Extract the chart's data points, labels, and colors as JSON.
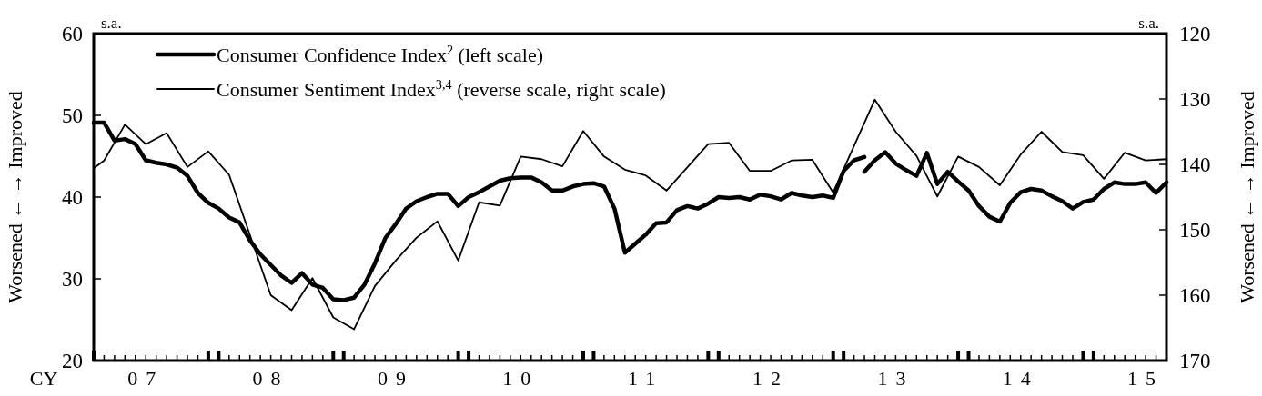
{
  "chart_data": {
    "type": "line",
    "ylabel": "Worsened ← → Improved",
    "y2label": "Worsened ← → Improved",
    "xlabel": "CY",
    "annotations": [
      "s.a.",
      "s.a."
    ],
    "legend": "top left",
    "xlim": [
      "2007-01",
      "2015-08"
    ],
    "xticks": [
      {
        "value": "2007-06",
        "label": "07"
      },
      {
        "value": "2008-06",
        "label": "08"
      },
      {
        "value": "2009-06",
        "label": "09"
      },
      {
        "value": "2010-06",
        "label": "10"
      },
      {
        "value": "2011-06",
        "label": "11"
      },
      {
        "value": "2012-06",
        "label": "12"
      },
      {
        "value": "2013-06",
        "label": "13"
      },
      {
        "value": "2014-06",
        "label": "14"
      },
      {
        "value": "2015-06",
        "label": "15"
      },
      {
        "value": "2007-01",
        "label": null
      },
      {
        "value": "2007-12",
        "label": null
      },
      {
        "value": "2008-01",
        "label": null
      },
      {
        "value": "2008-12",
        "label": null
      },
      {
        "value": "2009-01",
        "label": null
      },
      {
        "value": "2009-12",
        "label": null
      },
      {
        "value": "2010-01",
        "label": null
      },
      {
        "value": "2010-12",
        "label": null
      },
      {
        "value": "2011-01",
        "label": null
      },
      {
        "value": "2011-12",
        "label": null
      },
      {
        "value": "2012-01",
        "label": null
      },
      {
        "value": "2012-12",
        "label": null
      },
      {
        "value": "2013-01",
        "label": null
      },
      {
        "value": "2013-12",
        "label": null
      },
      {
        "value": "2014-01",
        "label": null
      },
      {
        "value": "2014-12",
        "label": null
      },
      {
        "value": "2015-01",
        "label": null
      }
    ],
    "ylim": [
      20,
      60
    ],
    "yticks": [
      20,
      30,
      40,
      50,
      60
    ],
    "y2lim": [
      170,
      120
    ],
    "y2ticks": [
      120,
      130,
      140,
      150,
      160,
      170
    ],
    "x": [
      "2007-01",
      "2007-02",
      "2007-03",
      "2007-04",
      "2007-05",
      "2007-06",
      "2007-07",
      "2007-08",
      "2007-09",
      "2007-10",
      "2007-11",
      "2007-12",
      "2008-01",
      "2008-02",
      "2008-03",
      "2008-04",
      "2008-05",
      "2008-06",
      "2008-07",
      "2008-08",
      "2008-09",
      "2008-10",
      "2008-11",
      "2008-12",
      "2009-01",
      "2009-02",
      "2009-03",
      "2009-04",
      "2009-05",
      "2009-06",
      "2009-07",
      "2009-08",
      "2009-09",
      "2009-10",
      "2009-11",
      "2009-12",
      "2010-01",
      "2010-02",
      "2010-03",
      "2010-04",
      "2010-05",
      "2010-06",
      "2010-07",
      "2010-08",
      "2010-09",
      "2010-10",
      "2010-11",
      "2010-12",
      "2011-01",
      "2011-02",
      "2011-03",
      "2011-04",
      "2011-05",
      "2011-06",
      "2011-07",
      "2011-08",
      "2011-09",
      "2011-10",
      "2011-11",
      "2011-12",
      "2012-01",
      "2012-02",
      "2012-03",
      "2012-04",
      "2012-05",
      "2012-06",
      "2012-07",
      "2012-08",
      "2012-09",
      "2012-10",
      "2012-11",
      "2012-12",
      "2013-01",
      "2013-02",
      "2013-03",
      "2013-04",
      "2013-05",
      "2013-06",
      "2013-07",
      "2013-08",
      "2013-09",
      "2013-10",
      "2013-11",
      "2013-12",
      "2014-01",
      "2014-02",
      "2014-03",
      "2014-04",
      "2014-05",
      "2014-06",
      "2014-07",
      "2014-08",
      "2014-09",
      "2014-10",
      "2014-11",
      "2014-12",
      "2015-01",
      "2015-02",
      "2015-03",
      "2015-04",
      "2015-05",
      "2015-06",
      "2015-07",
      "2015-08"
    ],
    "series": [
      {
        "name": "Consumer Confidence Index$^{2}$ (left scale)",
        "color": "#000000",
        "values": [
          49.1,
          49.1,
          46.9,
          47.1,
          46.5,
          44.5,
          44.2,
          44.0,
          43.6,
          42.6,
          40.5,
          39.3,
          38.6,
          37.5,
          36.9,
          34.7,
          33.0,
          31.7,
          30.4,
          29.5,
          30.7,
          29.3,
          28.9,
          27.5,
          27.4,
          27.7,
          29.3,
          31.9,
          35.0,
          36.7,
          38.6,
          39.5,
          40.0,
          40.4,
          40.4,
          38.9,
          40.0,
          40.6,
          41.3,
          42.0,
          42.3,
          42.4,
          42.4,
          41.8,
          40.8,
          40.8,
          41.3,
          41.6,
          41.7,
          41.3,
          38.6,
          33.2,
          34.3,
          35.4,
          36.8,
          36.9,
          38.4,
          38.9,
          38.6,
          39.2,
          40.0,
          39.9,
          40.0,
          39.7,
          40.3,
          40.1,
          39.7,
          40.5,
          40.2,
          40.0,
          40.2,
          39.9,
          43.2,
          44.5,
          44.9,
          null,
          null,
          null,
          null,
          null,
          null,
          null,
          null,
          null,
          null,
          null,
          null,
          null,
          null,
          null,
          null,
          null,
          null,
          null,
          null,
          null,
          null,
          null,
          null,
          null,
          null,
          null,
          null,
          null
        ]
      },
      {
        "color": "#000000",
        "values": [
          null,
          null,
          null,
          null,
          null,
          null,
          null,
          null,
          null,
          null,
          null,
          null,
          null,
          null,
          null,
          null,
          null,
          null,
          null,
          null,
          null,
          null,
          null,
          null,
          null,
          null,
          null,
          null,
          null,
          null,
          null,
          null,
          null,
          null,
          null,
          null,
          null,
          null,
          null,
          null,
          null,
          null,
          null,
          null,
          null,
          null,
          null,
          null,
          null,
          null,
          null,
          null,
          null,
          null,
          null,
          null,
          null,
          null,
          null,
          null,
          null,
          null,
          null,
          null,
          null,
          null,
          null,
          null,
          null,
          null,
          null,
          null,
          null,
          null,
          43.1,
          44.5,
          45.5,
          44.1,
          43.3,
          42.6,
          45.4,
          41.6,
          43.1,
          41.9,
          40.8,
          38.9,
          37.6,
          37.0,
          39.3,
          40.6,
          41.0,
          40.8,
          40.1,
          39.5,
          38.6,
          39.4,
          39.7,
          41.0,
          41.8,
          41.6,
          41.6,
          41.8,
          40.5,
          41.8
        ]
      },
      {
        "name": "Consumer Sentiment Index$^{3,4}$ (reverse scale, right scale)",
        "color": "#000000",
        "axis": "y2",
        "x": [
          "2007-01",
          "2007-02",
          "2007-04",
          "2007-06",
          "2007-08",
          "2007-10",
          "2007-12",
          "2008-02",
          "2008-06",
          "2008-08",
          "2008-10",
          "2008-12",
          "2009-02",
          "2009-04",
          "2009-06",
          "2009-08",
          "2009-10",
          "2009-12",
          "2010-02",
          "2010-04",
          "2010-06",
          "2010-08",
          "2010-10",
          "2010-12",
          "2011-02",
          "2011-04",
          "2011-06",
          "2011-08",
          "2011-12",
          "2012-02",
          "2012-04",
          "2012-06",
          "2012-08",
          "2012-10",
          "2012-12",
          "2013-04",
          "2013-06",
          "2013-08",
          "2013-10",
          "2013-12",
          "2014-02",
          "2014-04",
          "2014-06",
          "2014-08",
          "2014-10",
          "2014-12",
          "2015-02",
          "2015-04",
          "2015-06",
          "2015-08"
        ],
        "values": [
          140.6,
          139.4,
          133.9,
          136.9,
          135.2,
          140.4,
          138.0,
          141.6,
          160.0,
          162.3,
          157.4,
          163.4,
          165.2,
          158.6,
          154.7,
          151.2,
          148.7,
          154.7,
          145.8,
          146.3,
          138.8,
          139.2,
          140.3,
          134.9,
          138.8,
          140.8,
          141.7,
          144.0,
          136.9,
          136.7,
          141.0,
          141.0,
          139.4,
          139.3,
          144.3,
          130.1,
          135.0,
          138.7,
          144.9,
          138.8,
          140.4,
          143.2,
          138.5,
          135.0,
          138.1,
          138.6,
          142.2,
          138.2,
          139.4,
          139.2
        ]
      }
    ]
  }
}
